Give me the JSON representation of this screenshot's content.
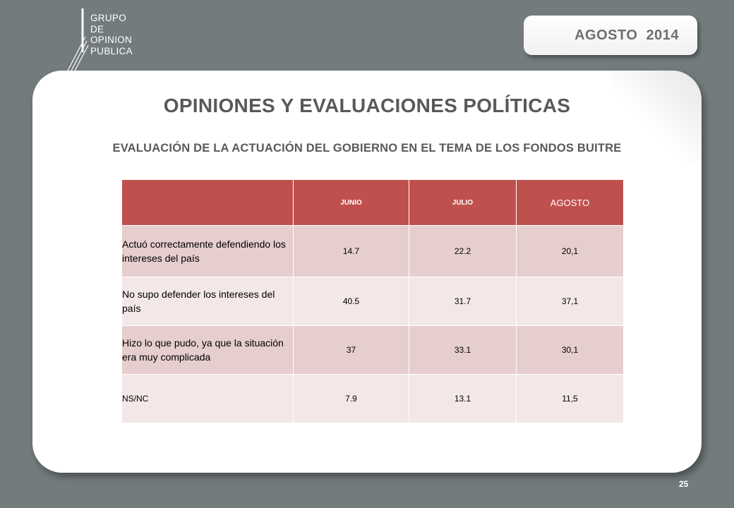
{
  "logo": {
    "lines": [
      "GRUPO",
      "DE",
      "OPINION",
      "PUBLICA"
    ]
  },
  "header": {
    "date": "AGOSTO  2014"
  },
  "main": {
    "title": "OPINIONES Y EVALUACIONES POLÍTICAS",
    "subtitle": "EVALUACIÓN DE LA ACTUACIÓN DEL GOBIERNO EN EL TEMA DE LOS FONDOS BUITRE"
  },
  "table": {
    "columns": [
      "",
      "JUNIO",
      "JULIO",
      "AGOSTO"
    ],
    "rows": [
      {
        "label": "Actuó correctamente defendiendo los intereses del país",
        "junio": "14.7",
        "julio": "22.2",
        "agosto": "20,1"
      },
      {
        "label": "No supo defender los intereses del país",
        "junio": "40.5",
        "julio": "31.7",
        "agosto": "37,1"
      },
      {
        "label": "Hizo lo que pudo, ya que la situación era muy complicada",
        "junio": "37",
        "julio": "33.1",
        "agosto": "30,1"
      },
      {
        "label": "NS/NC",
        "junio": "7.9",
        "julio": "13.1",
        "agosto": "11,5"
      }
    ]
  },
  "footer": {
    "page_number": "25"
  },
  "colors": {
    "background": "#737b7d",
    "header_red": "#c0504d",
    "row_dark": "#e6cdce",
    "row_light": "#f3e7e8"
  }
}
